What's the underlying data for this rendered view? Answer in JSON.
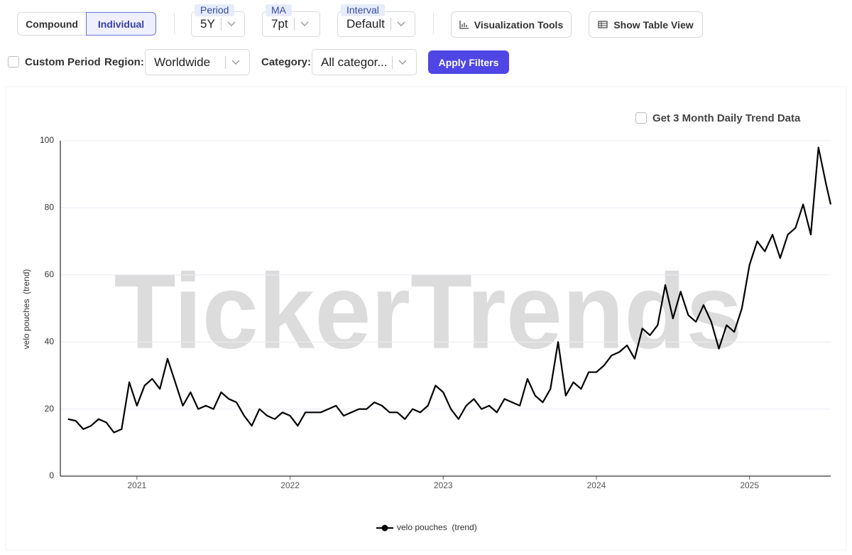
{
  "toolbar": {
    "compound": "Compound",
    "individual": "Individual",
    "period_label": "Period",
    "period_value": "5Y",
    "ma_label": "MA",
    "ma_value": "7pt",
    "interval_label": "Interval",
    "interval_value": "Default",
    "visualization_tools": "Visualization Tools",
    "show_table_view": "Show Table View"
  },
  "filters": {
    "custom_period": "Custom Period",
    "region_label": "Region:",
    "region_value": "Worldwide",
    "category_label": "Category:",
    "category_value": "All categor...",
    "apply": "Apply Filters"
  },
  "daily_trend_option": "Get 3 Month Daily Trend Data",
  "watermark": "TickerTrends",
  "chart_data": {
    "type": "line",
    "y_label": "velo pouches  (trend)",
    "x": [
      2020.55,
      2020.6,
      2020.65,
      2020.7,
      2020.75,
      2020.8,
      2020.85,
      2020.9,
      2020.95,
      2021,
      2021.05,
      2021.1,
      2021.15,
      2021.2,
      2021.25,
      2021.3,
      2021.35,
      2021.4,
      2021.45,
      2021.5,
      2021.55,
      2021.6,
      2021.65,
      2021.7,
      2021.75,
      2021.8,
      2021.85,
      2021.9,
      2021.95,
      2022,
      2022.05,
      2022.1,
      2022.15,
      2022.2,
      2022.25,
      2022.3,
      2022.35,
      2022.4,
      2022.45,
      2022.5,
      2022.55,
      2022.6,
      2022.65,
      2022.7,
      2022.75,
      2022.8,
      2022.85,
      2022.9,
      2022.95,
      2023,
      2023.05,
      2023.1,
      2023.15,
      2023.2,
      2023.25,
      2023.3,
      2023.35,
      2023.4,
      2023.45,
      2023.5,
      2023.55,
      2023.6,
      2023.65,
      2023.7,
      2023.75,
      2023.8,
      2023.85,
      2023.9,
      2023.95,
      2024,
      2024.05,
      2024.1,
      2024.15,
      2024.2,
      2024.25,
      2024.3,
      2024.35,
      2024.4,
      2024.45,
      2024.5,
      2024.55,
      2024.6,
      2024.65,
      2024.7,
      2024.75,
      2024.8,
      2024.85,
      2024.9,
      2024.95,
      2025,
      2025.05,
      2025.1,
      2025.15,
      2025.2,
      2025.25,
      2025.3,
      2025.35,
      2025.4,
      2025.45,
      2025.5,
      2025.53
    ],
    "series": [
      {
        "name": "velo pouches  (trend)",
        "color": "#000000",
        "values": [
          17,
          16.5,
          14,
          15,
          17,
          16,
          13,
          14,
          28,
          21,
          27,
          29,
          26,
          35,
          28,
          21,
          25,
          20,
          21,
          20,
          25,
          23,
          22,
          18,
          15,
          20,
          18,
          17,
          19,
          18,
          15,
          19,
          19,
          19,
          20,
          21,
          18,
          19,
          20,
          20,
          22,
          21,
          19,
          19,
          17,
          20,
          19,
          21,
          27,
          25,
          20,
          17,
          21,
          23,
          20,
          21,
          19,
          23,
          22,
          21,
          29,
          24,
          22,
          26,
          40,
          24,
          28,
          26,
          31,
          31,
          33,
          36,
          37,
          39,
          35,
          44,
          42,
          45,
          57,
          47,
          55,
          48,
          46,
          51,
          46,
          38,
          45,
          43,
          50,
          63,
          70,
          67,
          72,
          65,
          72,
          74,
          81,
          72,
          98,
          87,
          81
        ]
      }
    ],
    "xlim": [
      2020.5,
      2025.53
    ],
    "xticks": [
      2021,
      2022,
      2023,
      2024,
      2025
    ],
    "ylim": [
      0,
      100
    ],
    "yticks": [
      0,
      20,
      40,
      60,
      80,
      100
    ],
    "grid": true
  }
}
